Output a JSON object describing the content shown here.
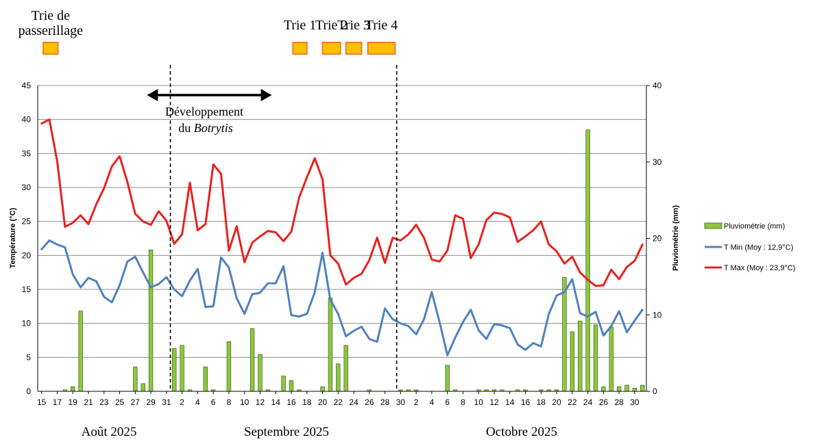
{
  "chart_data": {
    "type": "bar+line",
    "title": "",
    "y_left": {
      "label": "Température (°C)",
      "ylim": [
        0,
        45
      ],
      "ticks": [
        0,
        5,
        10,
        15,
        20,
        25,
        30,
        35,
        40,
        45
      ]
    },
    "y_right": {
      "label": "Pluviométrie (mm)",
      "ylim": [
        0,
        40
      ],
      "ticks": [
        0,
        10,
        20,
        30,
        40
      ]
    },
    "x_tick_labels": [
      "15",
      "17",
      "19",
      "21",
      "23",
      "25",
      "27",
      "29",
      "31",
      "2",
      "4",
      "6",
      "8",
      "10",
      "12",
      "14",
      "16",
      "18",
      "20",
      "22",
      "24",
      "26",
      "28",
      "30",
      "2",
      "4",
      "6",
      "8",
      "10",
      "12",
      "14",
      "16",
      "18",
      "20",
      "22",
      "24",
      "26",
      "28",
      "30"
    ],
    "months": [
      "Août 2025",
      "Septembre 2025",
      "Octobre 2025"
    ],
    "grid": true,
    "legend_position": "right",
    "series": [
      {
        "name": "Pluviométrie (mm)",
        "axis": "right",
        "kind": "bar",
        "color": "#8dc63f",
        "values": [
          0,
          0,
          0,
          0.2,
          0.6,
          10.5,
          0,
          0,
          0,
          0,
          0,
          0,
          3.2,
          1,
          18.5,
          0,
          0,
          5.6,
          6,
          0.2,
          0,
          3.2,
          0.2,
          0,
          6.5,
          0,
          0,
          8.2,
          4.8,
          0.2,
          0,
          2,
          1.4,
          0.2,
          0,
          0,
          0.6,
          12.2,
          3.6,
          6,
          0,
          0,
          0.2,
          0,
          0,
          0,
          0.2,
          0.2,
          0.2,
          0,
          0,
          0,
          3.4,
          0.2,
          0,
          0,
          0.2,
          0.2,
          0.2,
          0.2,
          0,
          0.2,
          0.2,
          0,
          0.2,
          0.2,
          0.2,
          14.9,
          7.8,
          9.2,
          34.2,
          8.7,
          0.6,
          8.4,
          0.6,
          0.8,
          0.4,
          0.8
        ]
      },
      {
        "name": "T Min (Moy : 12,9°C)",
        "axis": "left",
        "kind": "line",
        "color": "#4f81bd",
        "values": [
          20.9,
          22.2,
          21.6,
          21.2,
          17.2,
          15.3,
          16.7,
          16.2,
          13.9,
          13.1,
          15.6,
          19.1,
          19.8,
          17.5,
          15.3,
          15.8,
          16.8,
          15,
          14,
          16.3,
          18,
          12.4,
          12.5,
          19.7,
          18.2,
          13.7,
          11.4,
          14.3,
          14.5,
          15.9,
          15.9,
          18.4,
          11.2,
          11,
          11.4,
          14.6,
          20.4,
          13.5,
          11.4,
          8.1,
          8.9,
          9.5,
          7.7,
          7.3,
          12.2,
          10.6,
          10,
          9.6,
          8.4,
          10.6,
          14.6,
          10.2,
          5.3,
          7.9,
          10.2,
          12,
          9,
          7.7,
          9.9,
          9.7,
          9.3,
          6.9,
          6.1,
          7.1,
          6.6,
          11.4,
          14.1,
          14.6,
          16.5,
          11.5,
          11,
          11.7,
          8.2,
          9.6,
          11.8,
          8.7,
          10.4,
          12
        ]
      },
      {
        "name": "T Max (Moy : 23,9°C)",
        "axis": "left",
        "kind": "line",
        "color": "#e8201e",
        "values": [
          39.4,
          40,
          33.8,
          24.2,
          24.8,
          25.9,
          24.6,
          27.5,
          29.9,
          33.1,
          34.6,
          30.8,
          26.1,
          25,
          24.5,
          26.5,
          25.1,
          21.7,
          23.1,
          30.7,
          23.7,
          24.6,
          33.4,
          32,
          20.7,
          24.3,
          19,
          21.9,
          22.8,
          23.6,
          23.4,
          22.1,
          23.5,
          28.5,
          31.5,
          34.3,
          31.2,
          20,
          18.8,
          15.7,
          16.7,
          17.3,
          19.3,
          22.6,
          18.9,
          22.6,
          22.2,
          23.1,
          24.5,
          22.6,
          19.4,
          19.1,
          20.7,
          25.9,
          25.4,
          19.6,
          21.6,
          25.2,
          26.3,
          26.1,
          25.6,
          22,
          22.8,
          23.7,
          25,
          21.6,
          20.6,
          18.8,
          19.8,
          17.5,
          16.4,
          15.5,
          15.6,
          17.9,
          16.5,
          18.3,
          19.2,
          21.6
        ]
      }
    ],
    "dashed_vertical_lines_at_day_index": [
      17,
      46
    ],
    "phases": [
      {
        "label_lines": [
          "Trie de",
          "passerillage"
        ],
        "start": 0.7,
        "end": 2.6
      },
      {
        "label_lines": [
          "Trie 1"
        ],
        "start": 32.7,
        "end": 34.5
      },
      {
        "label_lines": [
          "Trie 2"
        ],
        "start": 36.5,
        "end": 38.8
      },
      {
        "label_lines": [
          "Trie 3"
        ],
        "start": 39.5,
        "end": 41.5
      },
      {
        "label_lines": [
          "Trie 4"
        ],
        "start": 42.3,
        "end": 45.8
      }
    ],
    "annotation": {
      "line1": "Développement",
      "line2_prefix": "du ",
      "line2_italic": "Botrytis",
      "arrow_from_day": 14,
      "arrow_to_day": 30
    }
  }
}
